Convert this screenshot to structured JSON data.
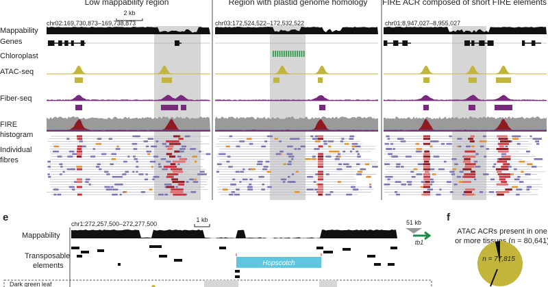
{
  "panels": [
    {
      "title": "Low mappability region",
      "coords": "chr02:169,730,873–169,738,873",
      "scale": "2 kb"
    },
    {
      "title": "Region with plastid genome homology",
      "coords": "chr03:172,524,522–172,532,522"
    },
    {
      "title": "FIRE ACR composed of short FIRE elements",
      "coords": "chr01:8,947,027–8,955,027"
    }
  ],
  "track_labels": {
    "mappability": "Mappability",
    "genes": "Genes",
    "chloroplast": "Chloroplast",
    "atac": "ATAC-seq",
    "fiber": "Fiber-seq",
    "fire_1": "FIRE",
    "fire_2": "histogram",
    "indiv_1": "Individual",
    "indiv_2": "fibres"
  },
  "panel_e": {
    "letter": "e",
    "coords": "chr1:272,257,500–272,277,500",
    "scale": "1 kb",
    "distance": "51 kb",
    "gene": "tb1",
    "mappability_label": "Mappability",
    "te_label_1": "Transposable",
    "te_label_2": "elements",
    "te_name": "Hopscotch",
    "cutoff_label": "Dark green leaf"
  },
  "panel_f": {
    "letter": "f",
    "title_1": "ATAC ACRs present in one",
    "title_2": "or more tissues (n = 80,641)",
    "n_label": "n = 77,815"
  },
  "chart_data": {
    "type": "pie",
    "title": "ATAC ACRs present in one or more tissues (n = 80,641)",
    "slices": [
      {
        "label": "n = 77,815",
        "value": 77815
      },
      {
        "label": "",
        "value": 2826
      }
    ]
  },
  "colors": {
    "mappability": "#111111",
    "atac": "#c3b43c",
    "fiber": "#7a2a7c",
    "fire": "#8c1b24",
    "fire_bg": "#9a9a9a",
    "chloroplast": "#2e9a4e",
    "highlight": "#d6d6d6",
    "hopscotch": "#5ec6de",
    "pie": "#c3b43c",
    "arrow": "#1e8a48"
  }
}
